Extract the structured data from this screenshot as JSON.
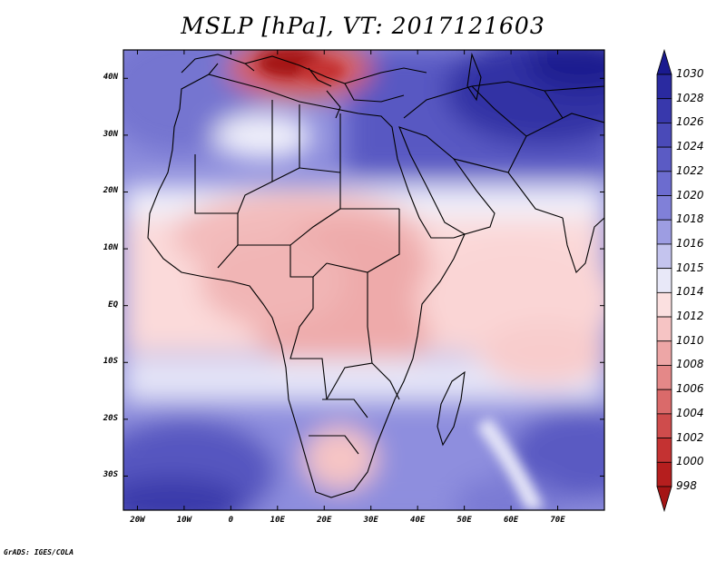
{
  "title": "MSLP [hPa], VT: 2017121603",
  "credit": "GrADS: IGES/COLA",
  "map": {
    "lon_range": [
      -23,
      80
    ],
    "lat_range": [
      -36,
      45
    ],
    "x_ticks": [
      "20W",
      "10W",
      "0",
      "10E",
      "20E",
      "30E",
      "40E",
      "50E",
      "60E",
      "70E"
    ],
    "x_tick_values": [
      -20,
      -10,
      0,
      10,
      20,
      30,
      40,
      50,
      60,
      70
    ],
    "y_ticks": [
      "40N",
      "30N",
      "20N",
      "10N",
      "EQ",
      "10S",
      "20S",
      "30S"
    ],
    "y_tick_values": [
      40,
      30,
      20,
      10,
      0,
      -10,
      -20,
      -30
    ]
  },
  "colorbar": {
    "levels": [
      "1030",
      "1028",
      "1026",
      "1024",
      "1022",
      "1020",
      "1018",
      "1016",
      "1015",
      "1014",
      "1012",
      "1010",
      "1008",
      "1006",
      "1004",
      "1002",
      "1000",
      "998"
    ],
    "colors": [
      "#1a1a8f",
      "#2a2aa0",
      "#3838ac",
      "#4a4ab8",
      "#5b5bc4",
      "#6c6ccf",
      "#8080d8",
      "#9d9de2",
      "#c4c4ee",
      "#e8e8f8",
      "#fbe0e0",
      "#f6c4c4",
      "#eda6a6",
      "#e48888",
      "#da6a6a",
      "#cf4c4c",
      "#c43232",
      "#b51e1e",
      "#a51515"
    ]
  },
  "regions": [
    {
      "name": "Europe / Mediterranean low",
      "value": "998-1004"
    },
    {
      "name": "Siberian / Asian high",
      "value": "1026-1030"
    },
    {
      "name": "Central Africa",
      "value": "1010-1012"
    },
    {
      "name": "South Atlantic high",
      "value": "1024-1026"
    },
    {
      "name": "South Indian Ocean high",
      "value": "1022-1024"
    }
  ]
}
